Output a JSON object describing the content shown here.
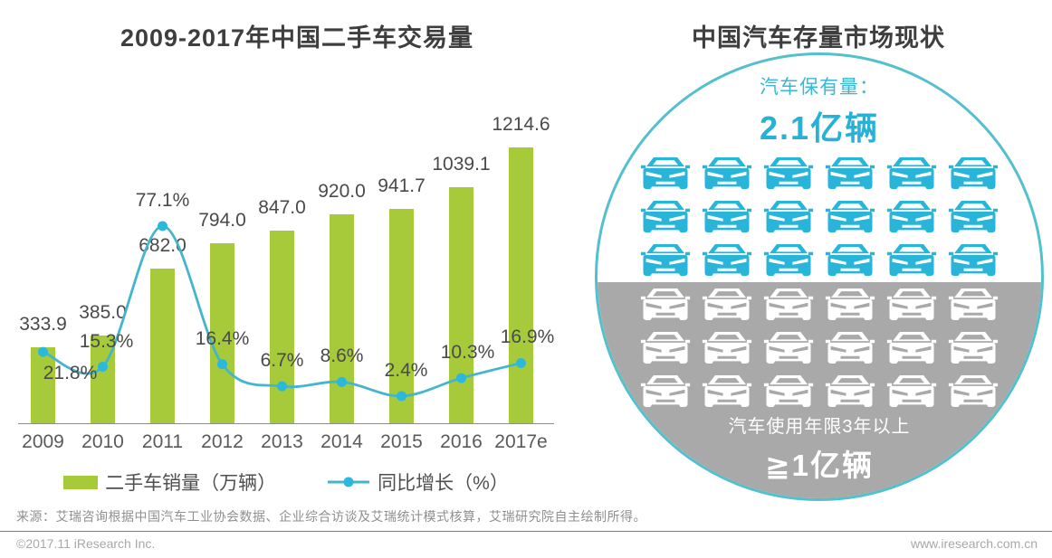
{
  "page": {
    "source": "来源：艾瑞咨询根据中国汽车工业协会数据、企业综合访谈及艾瑞统计模式核算，艾瑞研究院自主绘制所得。",
    "footer_left": "©2017.11 iResearch Inc.",
    "footer_right": "www.iresearch.com.cn"
  },
  "chart_data": {
    "type": "bar+line",
    "title": "2009-2017年中国二手车交易量",
    "categories": [
      "2009",
      "2010",
      "2011",
      "2012",
      "2013",
      "2014",
      "2015",
      "2016",
      "2017e"
    ],
    "series": [
      {
        "name": "二手车销量（万辆）",
        "type": "bar",
        "values": [
          333.9,
          385.0,
          682.0,
          794.0,
          847.0,
          920.0,
          941.7,
          1039.1,
          1214.6
        ],
        "color": "#a6ca3a"
      },
      {
        "name": "同比增长（%）",
        "type": "line",
        "values": [
          21.8,
          15.3,
          77.1,
          16.4,
          6.7,
          8.6,
          2.4,
          10.3,
          16.9
        ],
        "color": "#44b5cc",
        "dot_color": "#2ab9dd"
      }
    ],
    "gridlines": false,
    "value_labels": true,
    "legend_position": "bottom",
    "axis_color": "#8c8c8c",
    "label_color": "#4a4a4a",
    "layout_hints": {
      "pct_label_dx": [
        30,
        4,
        0,
        0,
        0,
        0,
        5,
        7,
        7
      ],
      "pct_label_position": [
        "below",
        "above",
        "above",
        "above",
        "above",
        "above",
        "above",
        "above",
        "above"
      ]
    }
  },
  "right_panel": {
    "title": "中国汽车存量市场现状",
    "top_label": "汽车保有量：",
    "top_value": "2.1亿辆",
    "bottom_label": "汽车使用年限3年以上",
    "bottom_value": "≧1亿辆",
    "upper_cars": {
      "rows": 3,
      "cols": 6
    },
    "lower_cars": {
      "rows": 3,
      "cols": 6
    },
    "colors": {
      "circle_border": "#53c0cd",
      "car_cyan": "#29b5d9",
      "car_white": "#ffffff",
      "band_gray": "#a9a9a9",
      "label_cyan": "#3ab8d3",
      "value_cyan": "#28b1d6",
      "bottom_text": "#ffffff"
    }
  }
}
